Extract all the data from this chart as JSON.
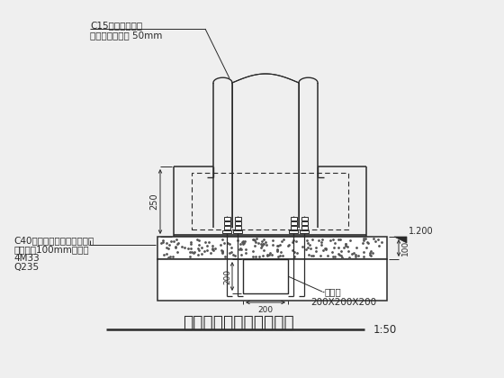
{
  "bg_color": "#efefef",
  "line_color": "#2a2a2a",
  "title": "柱脚包裹及后浇砼大样图",
  "scale": "1:50",
  "c15_text": "C15素混凝土包裹",
  "protect_text": "保护层厚度大于 50mm",
  "c40_text": "C40无收缩细石混凝土找平层",
  "level_text": "找平层厚100mm，后浇",
  "bolt_text": "4M33",
  "steel_text": "Q235",
  "dim_250": "250",
  "dim_200v": "200",
  "dim_200h": "200",
  "dim_100": "100",
  "dim_1200": "1.200",
  "groove_text": "抗剪槽",
  "groove_size": "200X200X200"
}
